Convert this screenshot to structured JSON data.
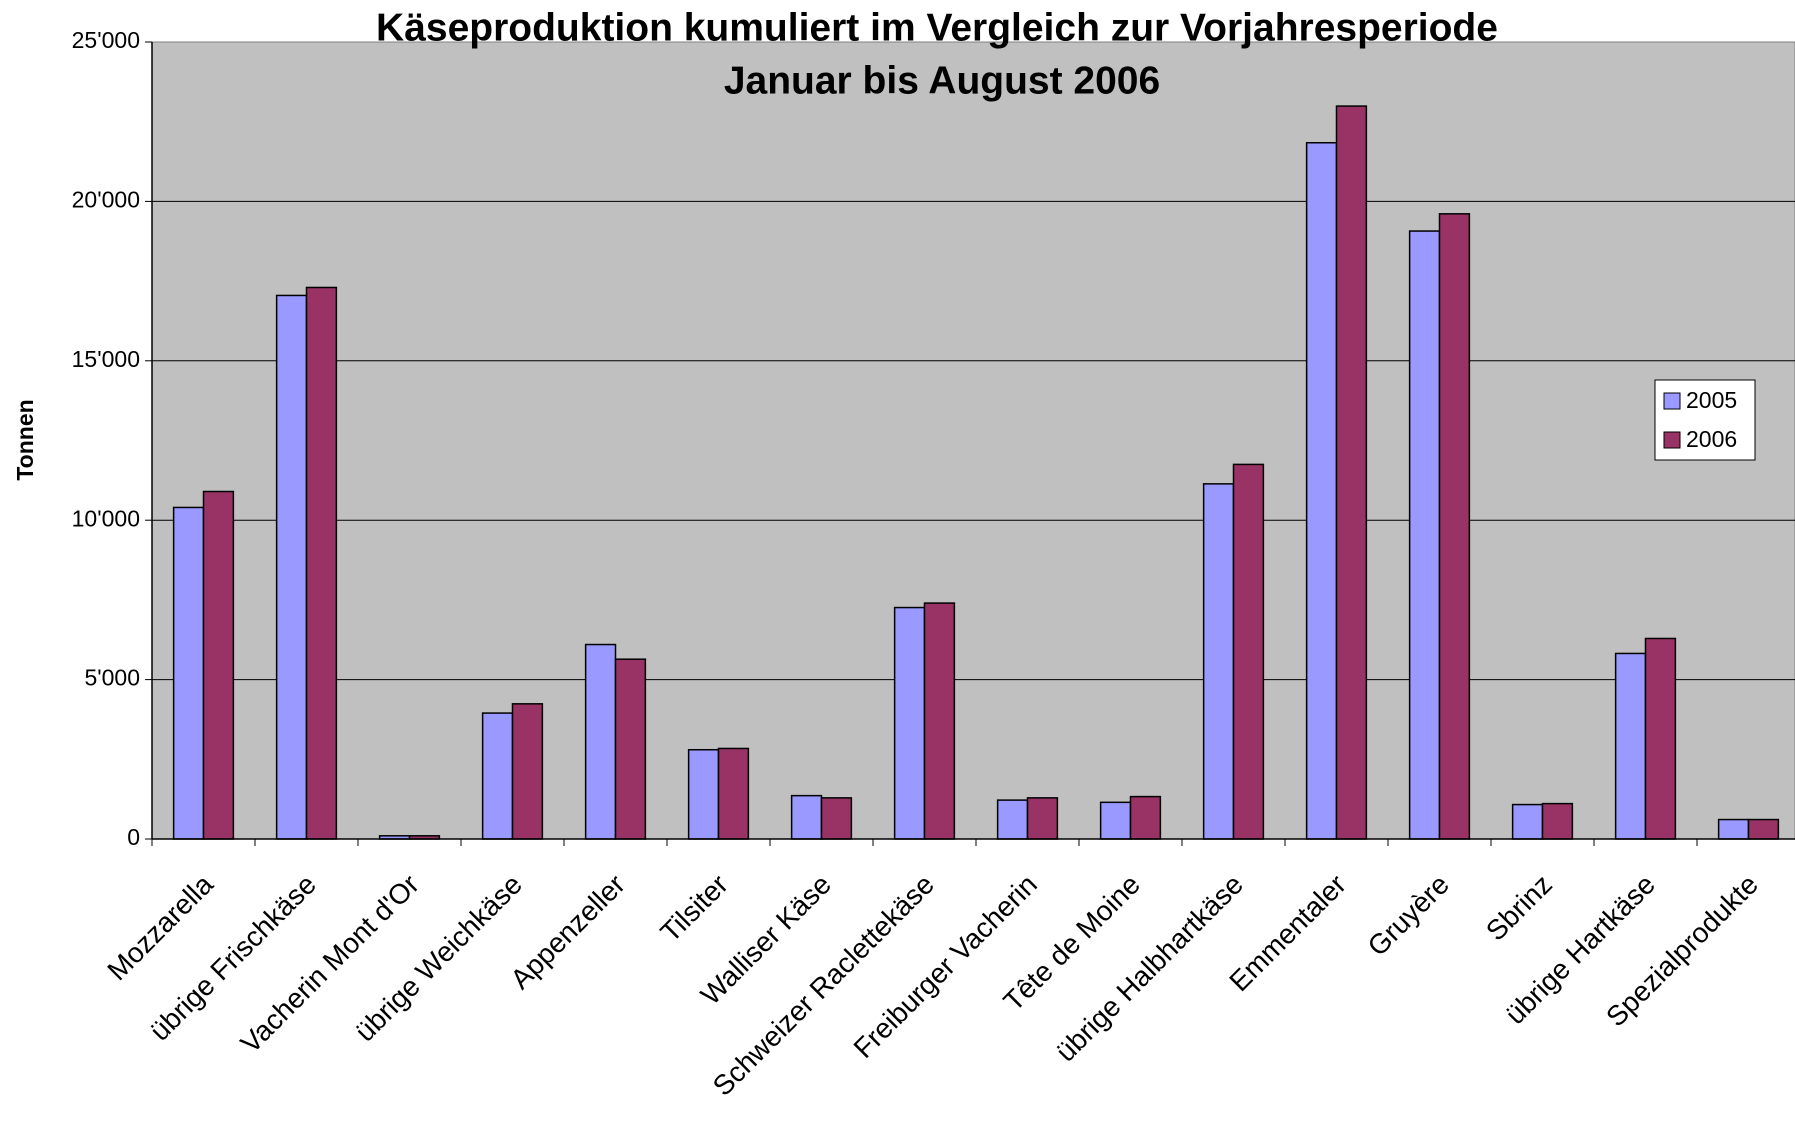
{
  "chart_data": {
    "type": "bar",
    "title": "Käseproduktion kumuliert im Vergleich zur Vorjahresperiode",
    "subtitle": "Januar bis August 2006",
    "y_label": "Tonnen",
    "categories": [
      "Mozzarella",
      "übrige Frischkäse",
      "Vacherin Mont d'Or",
      "übrige Weichkäse",
      "Appenzeller",
      "Tilsiter",
      "Walliser Käse",
      "Schweizer Raclettekäse",
      "Freiburger Vacherin",
      "Tête de Moine",
      "übrige Halbhartkäse",
      "Emmentaler",
      "Gruyère",
      "Sbrinz",
      "übrige Hartkäse",
      "Spezialprodukte"
    ],
    "series": [
      {
        "name": "2005",
        "color": "#9999ff",
        "values": [
          10400,
          17050,
          100,
          3950,
          6100,
          2800,
          1360,
          7260,
          1220,
          1150,
          11140,
          21840,
          19070,
          1080,
          5820,
          610
        ]
      },
      {
        "name": "2006",
        "color": "#993366",
        "values": [
          10900,
          17300,
          100,
          4240,
          5640,
          2840,
          1290,
          7400,
          1290,
          1330,
          11750,
          22990,
          19610,
          1110,
          6290,
          610
        ]
      }
    ],
    "ylim": [
      0,
      25000
    ],
    "yticks": [
      0,
      {
        "value": 5000,
        "label": "5'000"
      },
      {
        "value": 10000,
        "label": "10'000"
      },
      {
        "value": 15000,
        "label": "15'000"
      },
      {
        "value": 20000,
        "label": "20'000"
      },
      {
        "value": 25000,
        "label": "25'000"
      }
    ],
    "grid": true,
    "legend": "right"
  }
}
